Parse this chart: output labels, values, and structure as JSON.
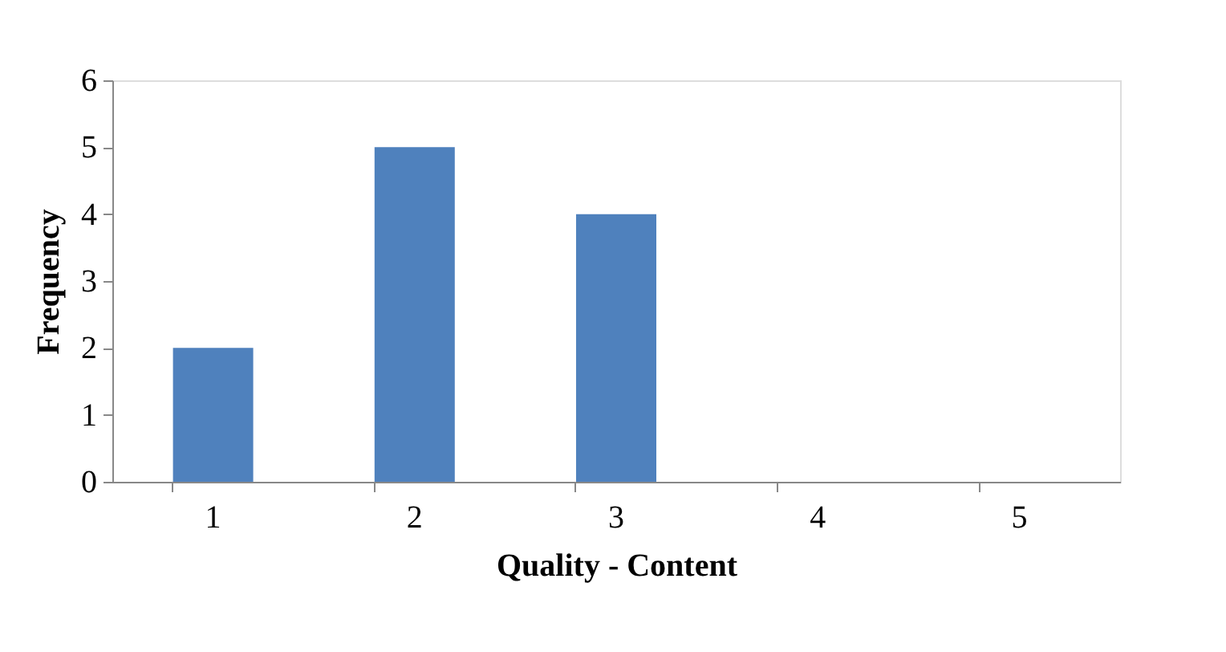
{
  "chart_data": {
    "type": "bar",
    "xlabel": "Quality - Content",
    "ylabel": "Frequency",
    "categories": [
      "1",
      "2",
      "3",
      "4",
      "5"
    ],
    "values": [
      2,
      5,
      4,
      0,
      0
    ],
    "color": "#4f81bd",
    "ylim": [
      0,
      6
    ],
    "yticks": [
      0,
      1,
      2,
      3,
      4,
      5,
      6
    ],
    "grid": false
  }
}
